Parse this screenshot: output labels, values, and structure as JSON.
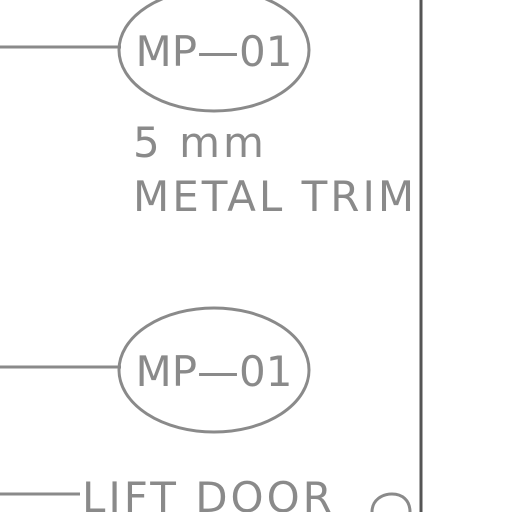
{
  "tags": [
    {
      "id": "tag-1",
      "code": "MP—01"
    },
    {
      "id": "tag-2",
      "code": "MP—01"
    }
  ],
  "notes": {
    "thickness": "5 mm",
    "material": "METAL TRIM",
    "lift_door": "LIFT DOOR"
  },
  "colors": {
    "annotation": "#8a8a8a",
    "border": "#555555",
    "background": "#ffffff"
  }
}
